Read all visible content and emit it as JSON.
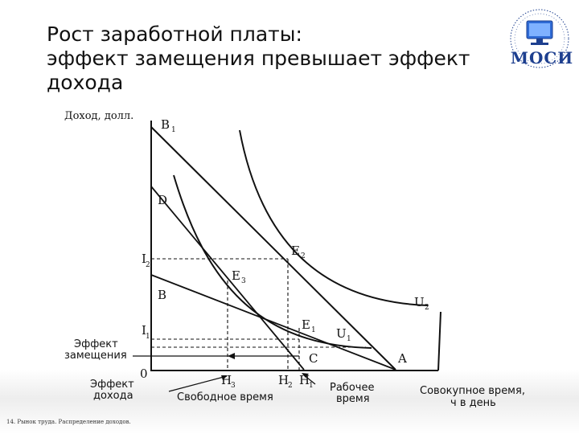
{
  "slide": {
    "title_lines": [
      "Рост заработной платы:",
      "эффект замещения превышает эффект",
      "дохода"
    ],
    "footer": "14. Рынок труда. Распределение доходов.",
    "logo_text": "МОСИ",
    "logo_ring_text": "Марийский государственный ... институт"
  },
  "diagram": {
    "y_axis_label": "Доход, долл.",
    "x_axis_label_line1": "Совокупное время,",
    "x_axis_label_line2": "ч в день",
    "points": {
      "b1": "B",
      "b1_sub": "1",
      "d": "D",
      "i2": "I",
      "i2_sub": "2",
      "b": "B",
      "i1": "I",
      "i1_sub": "1",
      "zero": "0",
      "e2": "E",
      "e2_sub": "2",
      "e3": "E",
      "e3_sub": "3",
      "e1": "E",
      "e1_sub": "1",
      "u2": "U",
      "u2_sub": "2",
      "u1": "U",
      "u1_sub": "1",
      "c": "C",
      "a": "A",
      "h3": "H",
      "h3_sub": "3",
      "h2": "H",
      "h2_sub": "2",
      "h1": "H",
      "h1_sub": "1"
    },
    "labels": {
      "substitution_line1": "Эффект",
      "substitution_line2": "замещения",
      "income_line1": "Эффект",
      "income_line2": "дохода",
      "free_time": "Свободное время",
      "work_time_line1": "Рабочее",
      "work_time_line2": "время"
    }
  }
}
